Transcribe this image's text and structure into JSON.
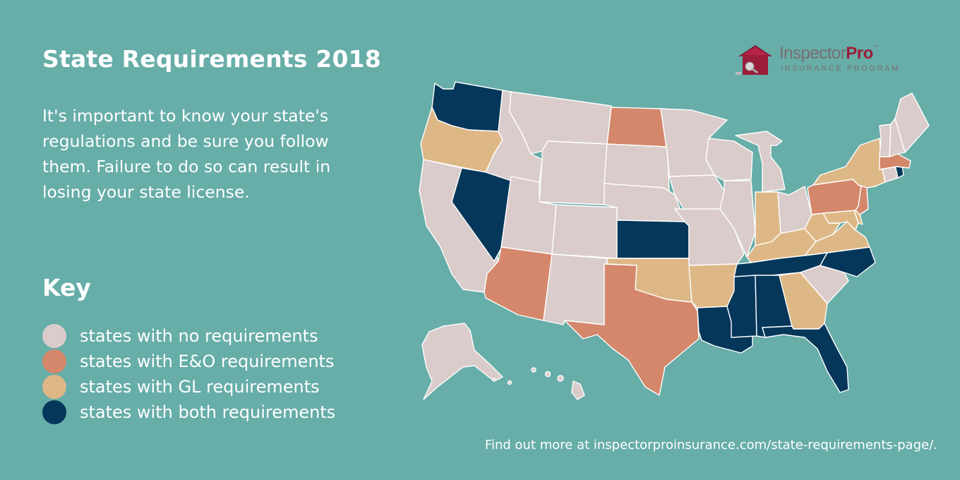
{
  "header": {
    "title": "State Requirements 2018",
    "intro": "It's important to know your state's regulations and be sure you follow them. Failure to do so can result in losing your state license."
  },
  "logo": {
    "name_part1": "Inspector",
    "name_part2": "Pro",
    "trademark": "™",
    "subtitle": "INSURANCE PROGRAM",
    "icon": "house-logo-icon"
  },
  "key": {
    "title": "Key",
    "items": [
      {
        "label": "states with no requirements",
        "color": "#D9CCCA",
        "category": "none"
      },
      {
        "label": "states with E&O requirements",
        "color": "#D4876B",
        "category": "eo"
      },
      {
        "label": "states with GL requirements",
        "color": "#DDB886",
        "category": "gl"
      },
      {
        "label": "states with both requirements",
        "color": "#04375A",
        "category": "both"
      }
    ]
  },
  "map": {
    "colors": {
      "none": "#D9CCCA",
      "eo": "#D4876B",
      "gl": "#DDB886",
      "both": "#04375A"
    },
    "states": {
      "WA": "both",
      "OR": "gl",
      "CA": "none",
      "NV": "both",
      "ID": "none",
      "MT": "none",
      "WY": "none",
      "UT": "none",
      "AZ": "eo",
      "CO": "none",
      "NM": "none",
      "ND": "eo",
      "SD": "none",
      "NE": "none",
      "KS": "both",
      "OK": "gl",
      "TX": "eo",
      "MN": "none",
      "IA": "none",
      "MO": "none",
      "AR": "gl",
      "LA": "both",
      "WI": "none",
      "IL": "none",
      "MI": "none",
      "IN": "gl",
      "OH": "none",
      "KY": "gl",
      "TN": "both",
      "MS": "both",
      "AL": "both",
      "GA": "gl",
      "FL": "both",
      "SC": "none",
      "NC": "both",
      "VA": "gl",
      "WV": "gl",
      "MD": "gl",
      "DE": "gl",
      "PA": "eo",
      "NJ": "eo",
      "NY": "gl",
      "CT": "none",
      "RI": "both",
      "MA": "eo",
      "VT": "none",
      "NH": "none",
      "ME": "none",
      "AK": "none",
      "HI": "none"
    }
  },
  "footer": {
    "text": "Find out more at inspectorproinsurance.com/state-requirements-page/."
  }
}
